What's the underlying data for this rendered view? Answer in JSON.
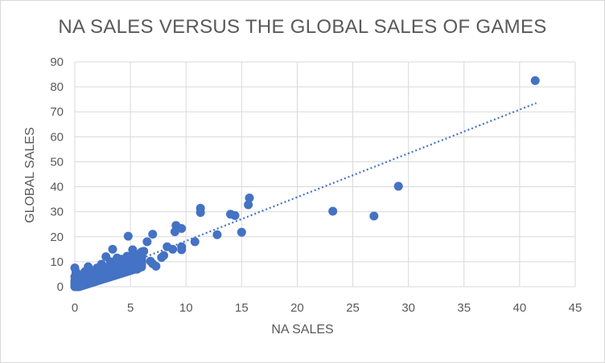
{
  "chart_data": {
    "type": "scatter",
    "title": "NA SALES VERSUS THE GLOBAL SALES OF GAMES",
    "xlabel": "NA SALES",
    "ylabel": "GLOBAL SALES",
    "xlim": [
      0,
      45
    ],
    "ylim": [
      0,
      90
    ],
    "x_ticks": [
      "0",
      "5",
      "10",
      "15",
      "20",
      "25",
      "30",
      "35",
      "40",
      "45"
    ],
    "y_ticks": [
      "0",
      "10",
      "20",
      "30",
      "40",
      "50",
      "60",
      "70",
      "80",
      "90"
    ],
    "grid": true,
    "legend": "none",
    "marker_color": "#4472c4",
    "trendline": {
      "style": "dotted",
      "color": "#4472c4",
      "x": [
        0,
        41.5
      ],
      "y": [
        0.8,
        73.5
      ]
    },
    "series": [
      {
        "points": [
          [
            41.4,
            82.5
          ],
          [
            29.1,
            40.2
          ],
          [
            26.9,
            28.3
          ],
          [
            23.2,
            30.2
          ],
          [
            15.7,
            35.5
          ],
          [
            15.6,
            32.8
          ],
          [
            15.0,
            21.8
          ],
          [
            14.4,
            28.5
          ],
          [
            14.0,
            29.0
          ],
          [
            12.8,
            20.8
          ],
          [
            11.3,
            31.4
          ],
          [
            11.3,
            29.7
          ],
          [
            10.8,
            18.0
          ],
          [
            9.6,
            23.3
          ],
          [
            9.6,
            16.0
          ],
          [
            9.6,
            14.8
          ],
          [
            9.1,
            24.5
          ],
          [
            9.0,
            22.0
          ],
          [
            8.8,
            15.0
          ],
          [
            8.3,
            16.0
          ],
          [
            8.0,
            12.5
          ],
          [
            7.8,
            11.7
          ],
          [
            7.3,
            8.2
          ],
          [
            7.0,
            21.0
          ],
          [
            7.0,
            9.2
          ],
          [
            6.5,
            18.0
          ],
          [
            6.8,
            10.2
          ],
          [
            6.2,
            14.2
          ],
          [
            6.0,
            11.5
          ],
          [
            5.8,
            13.0
          ],
          [
            5.5,
            10.2
          ],
          [
            5.2,
            14.8
          ],
          [
            5.0,
            8.5
          ],
          [
            4.8,
            20.2
          ],
          [
            4.7,
            12.2
          ],
          [
            4.5,
            9.8
          ],
          [
            4.2,
            11.0
          ],
          [
            4.0,
            7.0
          ],
          [
            3.8,
            11.5
          ],
          [
            3.5,
            8.5
          ],
          [
            3.4,
            15.0
          ],
          [
            3.2,
            10.0
          ],
          [
            3.0,
            6.8
          ],
          [
            2.8,
            12.0
          ],
          [
            2.6,
            5.8
          ],
          [
            2.4,
            9.0
          ],
          [
            2.2,
            5.0
          ],
          [
            2.0,
            7.5
          ],
          [
            1.8,
            4.2
          ],
          [
            1.6,
            6.5
          ],
          [
            1.4,
            3.5
          ],
          [
            1.2,
            8.0
          ],
          [
            1.0,
            2.8
          ],
          [
            0.9,
            6.0
          ],
          [
            0.8,
            2.2
          ],
          [
            0.6,
            4.5
          ],
          [
            0.5,
            1.5
          ],
          [
            0.4,
            3.0
          ],
          [
            0.3,
            0.8
          ],
          [
            0.2,
            2.0
          ],
          [
            0.1,
            0.5
          ],
          [
            0.05,
            1.2
          ],
          [
            0.0,
            0.3
          ],
          [
            0.0,
            4.0
          ],
          [
            0.1,
            6.0
          ],
          [
            0.0,
            7.5
          ],
          [
            0.2,
            5.0
          ],
          [
            3.6,
            6.0
          ],
          [
            4.3,
            7.8
          ],
          [
            5.6,
            7.0
          ],
          [
            6.0,
            9.0
          ],
          [
            2.0,
            3.5
          ],
          [
            1.5,
            2.5
          ],
          [
            0.7,
            1.0
          ],
          [
            2.9,
            4.6
          ],
          [
            3.3,
            5.2
          ]
        ]
      }
    ]
  }
}
